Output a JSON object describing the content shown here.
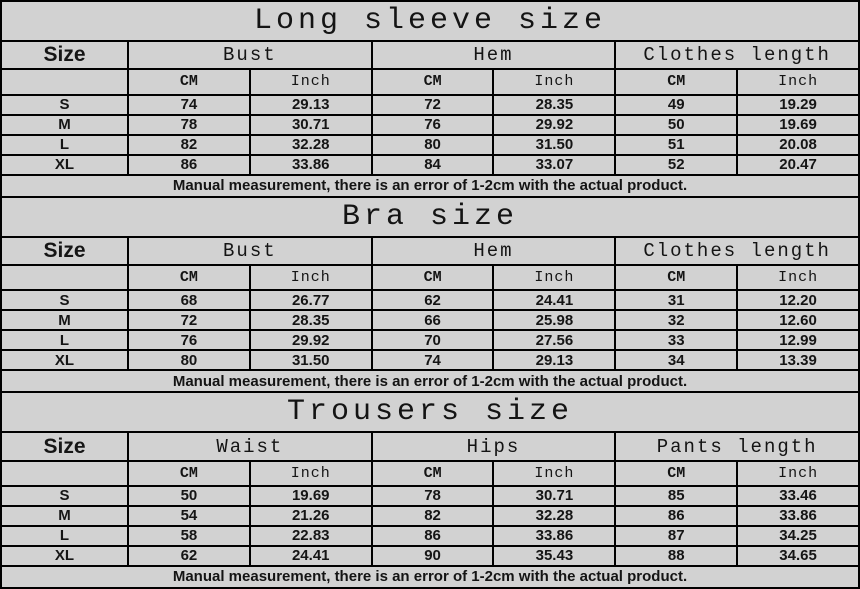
{
  "page": {
    "background_color": "#d2d2d2",
    "border_color": "#000000",
    "text_color": "#141414"
  },
  "size_header": "Size",
  "units": {
    "cm": "CM",
    "inch": "Inch"
  },
  "footer_note": "Manual measurement, there is an error of 1-2cm with the actual product.",
  "tables": [
    {
      "title": "Long sleeve size",
      "columns": [
        "Bust",
        "Hem",
        "Clothes length"
      ],
      "rows": [
        {
          "size": "S",
          "values": [
            "74",
            "29.13",
            "72",
            "28.35",
            "49",
            "19.29"
          ]
        },
        {
          "size": "M",
          "values": [
            "78",
            "30.71",
            "76",
            "29.92",
            "50",
            "19.69"
          ]
        },
        {
          "size": "L",
          "values": [
            "82",
            "32.28",
            "80",
            "31.50",
            "51",
            "20.08"
          ]
        },
        {
          "size": "XL",
          "values": [
            "86",
            "33.86",
            "84",
            "33.07",
            "52",
            "20.47"
          ]
        }
      ]
    },
    {
      "title": "Bra size",
      "columns": [
        "Bust",
        "Hem",
        "Clothes length"
      ],
      "rows": [
        {
          "size": "S",
          "values": [
            "68",
            "26.77",
            "62",
            "24.41",
            "31",
            "12.20"
          ]
        },
        {
          "size": "M",
          "values": [
            "72",
            "28.35",
            "66",
            "25.98",
            "32",
            "12.60"
          ]
        },
        {
          "size": "L",
          "values": [
            "76",
            "29.92",
            "70",
            "27.56",
            "33",
            "12.99"
          ]
        },
        {
          "size": "XL",
          "values": [
            "80",
            "31.50",
            "74",
            "29.13",
            "34",
            "13.39"
          ]
        }
      ]
    },
    {
      "title": "Trousers size",
      "columns": [
        "Waist",
        "Hips",
        "Pants length"
      ],
      "rows": [
        {
          "size": "S",
          "values": [
            "50",
            "19.69",
            "78",
            "30.71",
            "85",
            "33.46"
          ]
        },
        {
          "size": "M",
          "values": [
            "54",
            "21.26",
            "82",
            "32.28",
            "86",
            "33.86"
          ]
        },
        {
          "size": "L",
          "values": [
            "58",
            "22.83",
            "86",
            "33.86",
            "87",
            "34.25"
          ]
        },
        {
          "size": "XL",
          "values": [
            "62",
            "24.41",
            "90",
            "35.43",
            "88",
            "34.65"
          ]
        }
      ]
    }
  ]
}
